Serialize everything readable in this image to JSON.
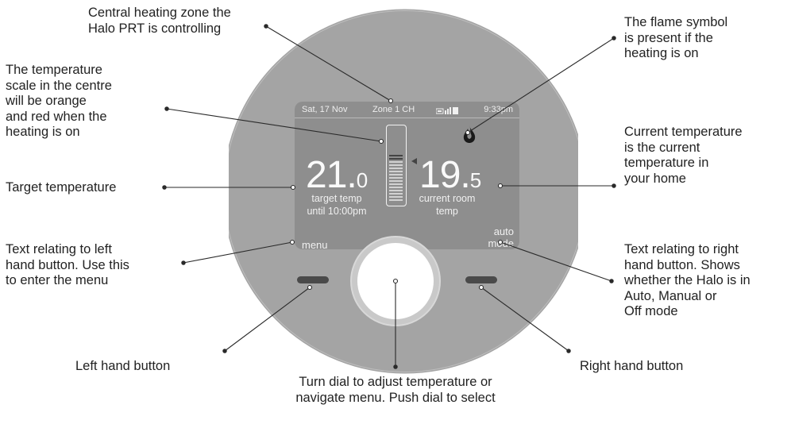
{
  "annotations": {
    "zone": [
      "Central heating zone the",
      "Halo PRT is controlling"
    ],
    "scale": [
      "The temperature",
      "scale in the centre",
      "will be orange",
      "and red when the",
      "heating is on"
    ],
    "target": [
      "Target temperature"
    ],
    "left_text": [
      "Text relating to left",
      "hand button. Use this",
      "to enter the menu"
    ],
    "left_button": [
      "Left hand button"
    ],
    "dial": [
      "Turn dial to adjust temperature or",
      "navigate menu. Push dial to select"
    ],
    "flame": [
      "The flame symbol",
      "is present if the",
      "heating is on"
    ],
    "current": [
      "Current temperature",
      "is the current",
      "temperature in",
      "your home"
    ],
    "right_text": [
      "Text relating to right",
      "hand button. Shows",
      "whether the Halo is in",
      "Auto, Manual or",
      "Off mode"
    ],
    "right_button": [
      "Right hand button"
    ]
  },
  "screen": {
    "date": "Sat, 17 Nov",
    "zone": "Zone 1 CH",
    "time": "9:33pm",
    "target_int": "21.",
    "target_dec": "0",
    "target_label": [
      "target temp",
      "until 10:00pm"
    ],
    "current_int": "19.",
    "current_dec": "5",
    "current_label": [
      "current room",
      "temp"
    ],
    "left_soft": "menu",
    "right_soft": [
      "auto",
      "mode"
    ]
  },
  "colors": {
    "body": "#a3a3a3",
    "screen": "#8e8e8e",
    "flame": "#1a1a1a",
    "button": "#4a4a4a"
  },
  "icons": [
    "flame-icon",
    "battery-signal-icon",
    "scale-arrow-icon"
  ]
}
